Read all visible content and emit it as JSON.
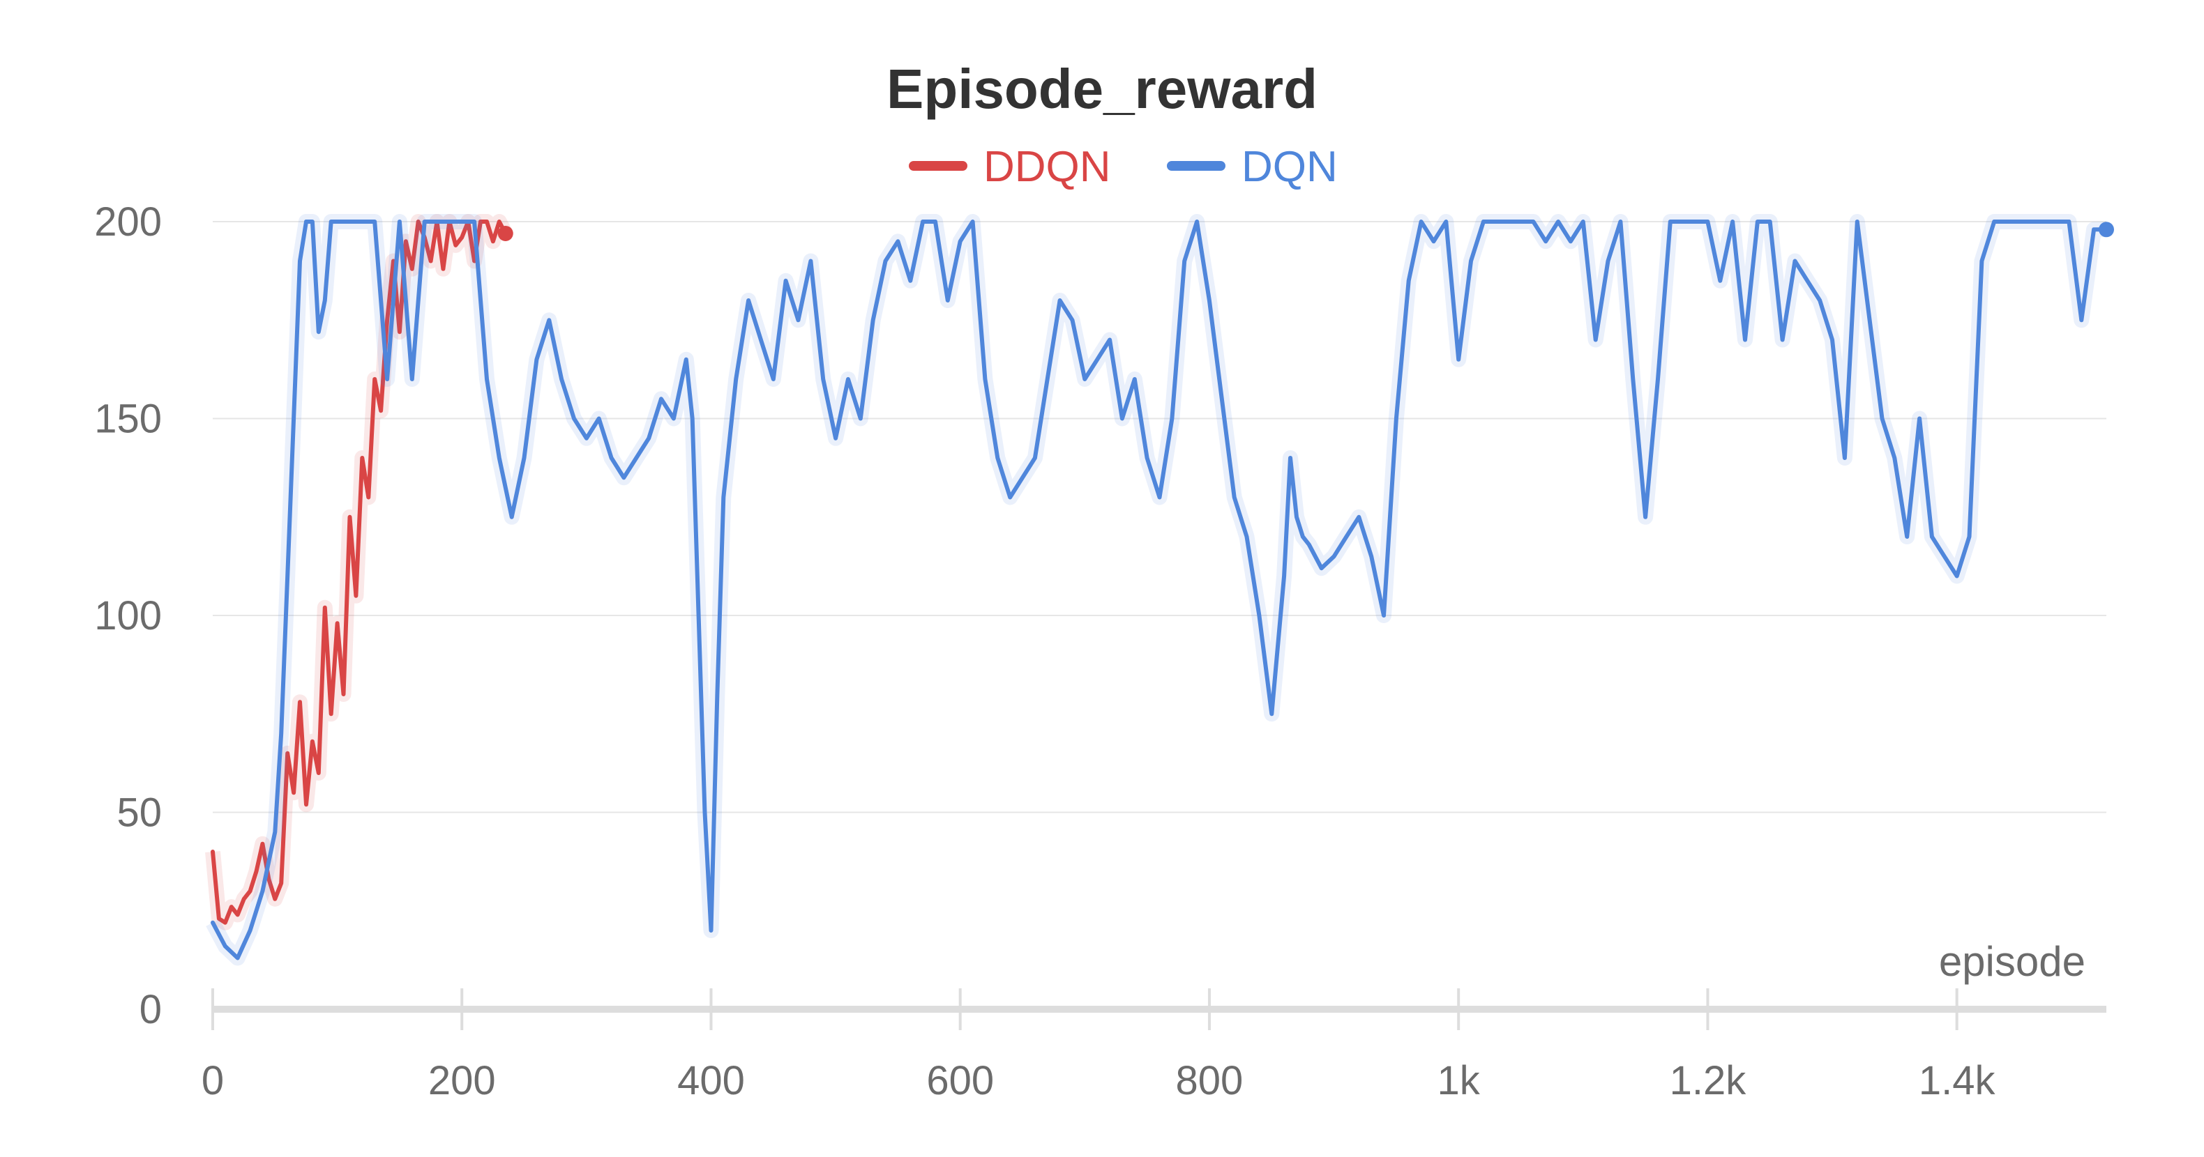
{
  "chart_data": {
    "type": "line",
    "title": "Episode_reward",
    "xlabel": "episode",
    "ylabel": "",
    "xlim": [
      0,
      1520
    ],
    "ylim": [
      0,
      200
    ],
    "x_ticks": [
      0,
      200,
      400,
      600,
      800,
      1000,
      1200,
      1400
    ],
    "x_tick_labels": [
      "0",
      "200",
      "400",
      "600",
      "800",
      "1k",
      "1.2k",
      "1.4k"
    ],
    "y_ticks": [
      0,
      50,
      100,
      150,
      200
    ],
    "y_tick_labels": [
      "0",
      "50",
      "100",
      "150",
      "200"
    ],
    "grid": true,
    "legend_position": "top-center",
    "series": [
      {
        "name": "DDQN",
        "color": "#d94545",
        "x": [
          0,
          5,
          10,
          15,
          20,
          25,
          30,
          35,
          40,
          45,
          50,
          55,
          60,
          65,
          70,
          75,
          80,
          85,
          90,
          95,
          100,
          105,
          110,
          115,
          120,
          125,
          130,
          135,
          140,
          145,
          150,
          155,
          160,
          165,
          170,
          175,
          180,
          185,
          190,
          195,
          200,
          205,
          210,
          215,
          220,
          225,
          230,
          235
        ],
        "y": [
          40,
          23,
          22,
          26,
          24,
          28,
          30,
          35,
          42,
          33,
          28,
          32,
          65,
          55,
          78,
          52,
          68,
          60,
          102,
          75,
          98,
          80,
          125,
          105,
          140,
          130,
          160,
          152,
          175,
          190,
          172,
          195,
          188,
          200,
          196,
          190,
          200,
          188,
          200,
          194,
          196,
          200,
          190,
          200,
          200,
          195,
          200,
          197
        ]
      },
      {
        "name": "DQN",
        "color": "#4f86db",
        "x": [
          0,
          10,
          20,
          30,
          40,
          50,
          55,
          60,
          65,
          70,
          75,
          80,
          85,
          90,
          95,
          100,
          110,
          120,
          130,
          140,
          150,
          160,
          170,
          180,
          190,
          200,
          210,
          220,
          230,
          240,
          250,
          260,
          270,
          280,
          290,
          300,
          310,
          320,
          330,
          340,
          350,
          360,
          370,
          380,
          385,
          390,
          395,
          400,
          405,
          410,
          420,
          430,
          440,
          450,
          460,
          470,
          480,
          490,
          500,
          510,
          520,
          530,
          540,
          550,
          560,
          570,
          580,
          590,
          600,
          610,
          620,
          630,
          640,
          650,
          660,
          670,
          680,
          690,
          700,
          710,
          720,
          730,
          740,
          750,
          760,
          770,
          780,
          790,
          800,
          810,
          820,
          830,
          840,
          850,
          860,
          865,
          870,
          875,
          880,
          890,
          900,
          910,
          920,
          930,
          940,
          950,
          960,
          970,
          980,
          990,
          1000,
          1010,
          1020,
          1030,
          1040,
          1050,
          1060,
          1070,
          1080,
          1090,
          1100,
          1110,
          1120,
          1130,
          1140,
          1150,
          1160,
          1170,
          1180,
          1190,
          1200,
          1210,
          1220,
          1230,
          1240,
          1250,
          1260,
          1270,
          1280,
          1290,
          1300,
          1310,
          1320,
          1330,
          1340,
          1350,
          1360,
          1370,
          1380,
          1390,
          1400,
          1410,
          1420,
          1430,
          1440,
          1450,
          1460,
          1470,
          1475,
          1480,
          1485,
          1490,
          1500,
          1510,
          1520
        ],
        "y": [
          22,
          16,
          13,
          20,
          30,
          45,
          70,
          110,
          150,
          190,
          200,
          200,
          172,
          180,
          200,
          200,
          200,
          200,
          200,
          160,
          200,
          160,
          200,
          200,
          200,
          200,
          200,
          160,
          140,
          125,
          140,
          165,
          175,
          160,
          150,
          145,
          150,
          140,
          135,
          140,
          145,
          155,
          150,
          165,
          150,
          100,
          50,
          20,
          80,
          130,
          160,
          180,
          170,
          160,
          185,
          175,
          190,
          160,
          145,
          160,
          150,
          175,
          190,
          195,
          185,
          200,
          200,
          180,
          195,
          200,
          160,
          140,
          130,
          135,
          140,
          160,
          180,
          175,
          160,
          165,
          170,
          150,
          160,
          140,
          130,
          150,
          190,
          200,
          180,
          155,
          130,
          120,
          100,
          75,
          110,
          140,
          125,
          120,
          118,
          112,
          115,
          120,
          125,
          115,
          100,
          150,
          185,
          200,
          195,
          200,
          165,
          190,
          200,
          200,
          200,
          200,
          200,
          195,
          200,
          195,
          200,
          170,
          190,
          200,
          160,
          125,
          160,
          200,
          200,
          200,
          200,
          185,
          200,
          170,
          200,
          200,
          170,
          190,
          185,
          180,
          170,
          140,
          200,
          175,
          150,
          140,
          120,
          150,
          120,
          115,
          110,
          120,
          190,
          200,
          200,
          200,
          200,
          200,
          200,
          200,
          200,
          200,
          175,
          198,
          198
        ]
      }
    ]
  }
}
